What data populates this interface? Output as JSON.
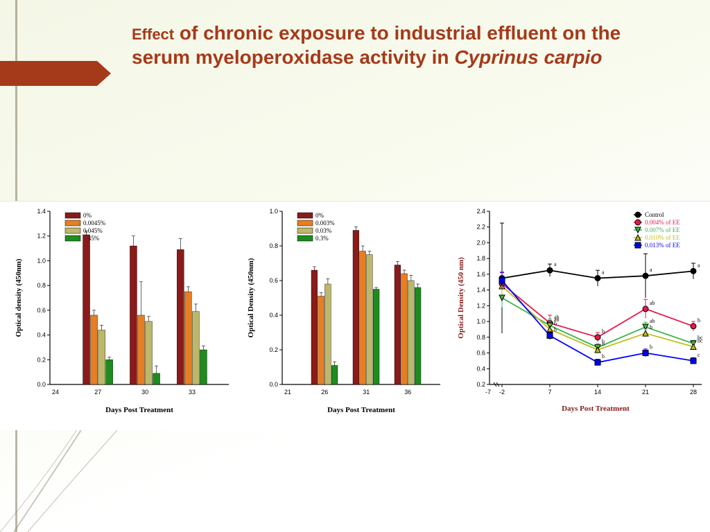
{
  "title_prefix": "Effect",
  "title_main": " of chronic exposure to industrial effluent on the serum myeloperoxidase activity in ",
  "title_ital": "Cyprinus carpio",
  "colors": {
    "accent": "#a53a1a",
    "bar": [
      "#8b1a1a",
      "#e67e22",
      "#bdb76b",
      "#1e8b1e"
    ],
    "line": [
      "#000000",
      "#e6194b",
      "#3cb44b",
      "#bfbf1f",
      "#0000ff"
    ]
  },
  "chart1": {
    "type": "bar",
    "ylabel": "Optical density (450nm)",
    "xlabel": "Days Post Treatment",
    "ylim": [
      0,
      1.4
    ],
    "ytick": 0.2,
    "legend": [
      "0%",
      "0.0045%",
      "0.045%",
      "0.45%"
    ],
    "groups": [
      "27",
      "30",
      "33"
    ],
    "xaxis_labels": [
      "24",
      "27",
      "30",
      "33"
    ],
    "series": [
      [
        1.21,
        1.12,
        1.09
      ],
      [
        0.56,
        0.56,
        0.75
      ],
      [
        0.44,
        0.51,
        0.59
      ],
      [
        0.2,
        0.09,
        0.28
      ]
    ],
    "err": [
      [
        0.03,
        0.08,
        0.09
      ],
      [
        0.04,
        0.27,
        0.04
      ],
      [
        0.04,
        0.04,
        0.06
      ],
      [
        0.02,
        0.06,
        0.03
      ]
    ]
  },
  "chart2": {
    "type": "bar",
    "ylabel": "Optical Density (450nm)",
    "xlabel": "Days Post Treatment",
    "ylim": [
      0,
      1.0
    ],
    "ytick": 0.2,
    "legend": [
      "0%",
      "0.003%",
      "0.03%",
      "0.3%"
    ],
    "groups": [
      "26",
      "31",
      "36"
    ],
    "xaxis_labels": [
      "21",
      "26",
      "31",
      "36"
    ],
    "series": [
      [
        0.66,
        0.89,
        0.69
      ],
      [
        0.51,
        0.77,
        0.64
      ],
      [
        0.58,
        0.75,
        0.6
      ],
      [
        0.11,
        0.55,
        0.56
      ]
    ],
    "err": [
      [
        0.02,
        0.02,
        0.02
      ],
      [
        0.02,
        0.03,
        0.02
      ],
      [
        0.03,
        0.02,
        0.03
      ],
      [
        0.02,
        0.01,
        0.02
      ]
    ]
  },
  "chart3": {
    "type": "line",
    "ylabel": "Optical Density (450 nm)",
    "xlabel": "Days Post Treatment",
    "ylim": [
      0.2,
      2.4
    ],
    "ytick": 0.2,
    "x": [
      -2,
      7,
      14,
      21,
      28
    ],
    "xaxis_labels": [
      "-7",
      "-2",
      "7",
      "14",
      "21",
      "28"
    ],
    "legend": [
      "Control",
      "0.004% of EE",
      "0.007% of EE",
      "0.010% of EE",
      "0.013% of EE"
    ],
    "series": [
      [
        1.55,
        1.65,
        1.55,
        1.58,
        1.64
      ],
      [
        1.48,
        0.98,
        0.8,
        1.16,
        0.94
      ],
      [
        1.3,
        0.95,
        0.67,
        0.93,
        0.72
      ],
      [
        1.45,
        0.9,
        0.64,
        0.85,
        0.68
      ],
      [
        1.52,
        0.82,
        0.48,
        0.6,
        0.5
      ]
    ],
    "err": [
      [
        0.7,
        0.08,
        0.1,
        0.28,
        0.1
      ],
      [
        0.15,
        0.1,
        0.06,
        0.12,
        0.06
      ],
      [
        0.12,
        0.08,
        0.05,
        0.06,
        0.04
      ],
      [
        0.1,
        0.06,
        0.05,
        0.05,
        0.04
      ],
      [
        0.1,
        0.05,
        0.04,
        0.05,
        0.04
      ]
    ],
    "sig": [
      [
        "",
        "a",
        "a",
        "a",
        "a"
      ],
      [
        "",
        "ab",
        "b",
        "ab",
        "b"
      ],
      [
        "",
        "ab",
        "b",
        "ab",
        "bc"
      ],
      [
        "",
        "b",
        "b",
        "b",
        "bc"
      ],
      [
        "",
        "b",
        "b",
        "b",
        "c"
      ]
    ],
    "markers": [
      "circle",
      "circle",
      "down",
      "up",
      "square"
    ]
  }
}
